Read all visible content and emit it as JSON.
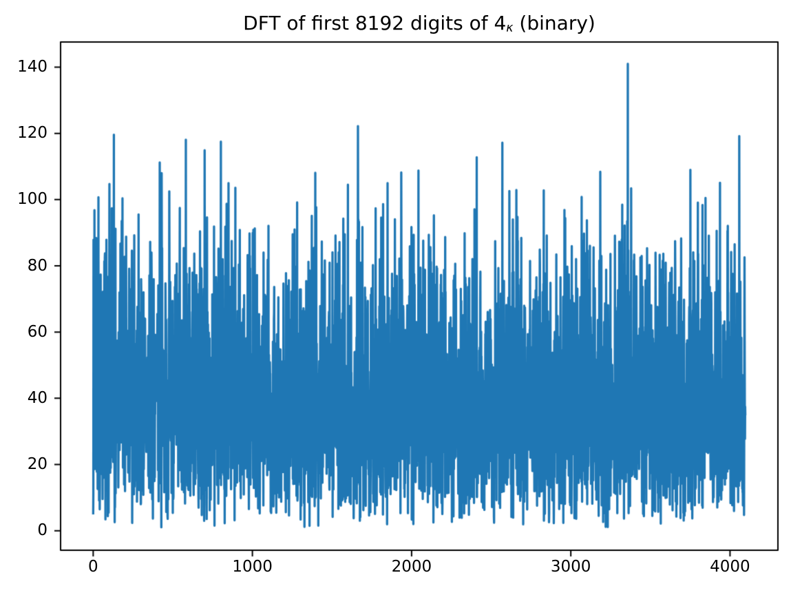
{
  "figure": {
    "background": "#ffffff",
    "title": {
      "prefix": "DFT of first 8192 digits of 4",
      "subscript": "κ",
      "suffix": " (binary)",
      "full": "DFT of first 8192 digits of 4κ (binary)"
    }
  },
  "chart_data": {
    "type": "line",
    "title": "DFT of first 8192 digits of 4κ (binary)",
    "xlabel": "",
    "ylabel": "",
    "grid": false,
    "legend": "none",
    "line_color": "#1f77b4",
    "axis_color": "#000000",
    "xlim": [
      -204.8,
      4300.8
    ],
    "ylim": [
      -5.9,
      147.6
    ],
    "xticks": [
      0,
      1000,
      2000,
      3000,
      4000
    ],
    "xtick_labels": [
      "0",
      "1000",
      "2000",
      "3000",
      "4000"
    ],
    "yticks": [
      0,
      20,
      40,
      60,
      80,
      100,
      120,
      140
    ],
    "ytick_labels": [
      "0",
      "20",
      "40",
      "60",
      "80",
      "100",
      "120",
      "140"
    ],
    "n_points": 4097,
    "x_start": 0,
    "x_end": 4096,
    "y_max_peak": 141,
    "series_description": "Noise-like DFT magnitude spectrum of 8192 binary digits: ~4097 Rayleigh-distributed magnitudes (sigma ~32, dense band ~15-65, occasional dips near 0) with the isolated high peaks listed in 'peaks' [frequency bin, magnitude].",
    "noise": {
      "distribution": "rayleigh",
      "sigma": 32,
      "seed": 7,
      "clamp": 100
    },
    "peaks": [
      [
        8,
        96.8
      ],
      [
        33,
        100.7
      ],
      [
        102,
        104.7
      ],
      [
        130,
        119.6
      ],
      [
        184,
        100.4
      ],
      [
        418,
        111.2
      ],
      [
        430,
        108.0
      ],
      [
        478,
        102.5
      ],
      [
        582,
        118.1
      ],
      [
        700,
        114.9
      ],
      [
        802,
        117.5
      ],
      [
        850,
        105.0
      ],
      [
        893,
        103.6
      ],
      [
        1395,
        108.1
      ],
      [
        1600,
        104.5
      ],
      [
        1663,
        122.2
      ],
      [
        1849,
        105.0
      ],
      [
        1935,
        108.2
      ],
      [
        2043,
        108.8
      ],
      [
        2409,
        112.8
      ],
      [
        2570,
        117.2
      ],
      [
        2614,
        102.6
      ],
      [
        2658,
        102.9
      ],
      [
        2830,
        102.8
      ],
      [
        3068,
        100.8
      ],
      [
        3185,
        108.4
      ],
      [
        3358,
        141.0
      ],
      [
        3379,
        103.4
      ],
      [
        3751,
        109.0
      ],
      [
        3846,
        100.5
      ],
      [
        3937,
        105.1
      ],
      [
        4058,
        119.2
      ]
    ]
  }
}
